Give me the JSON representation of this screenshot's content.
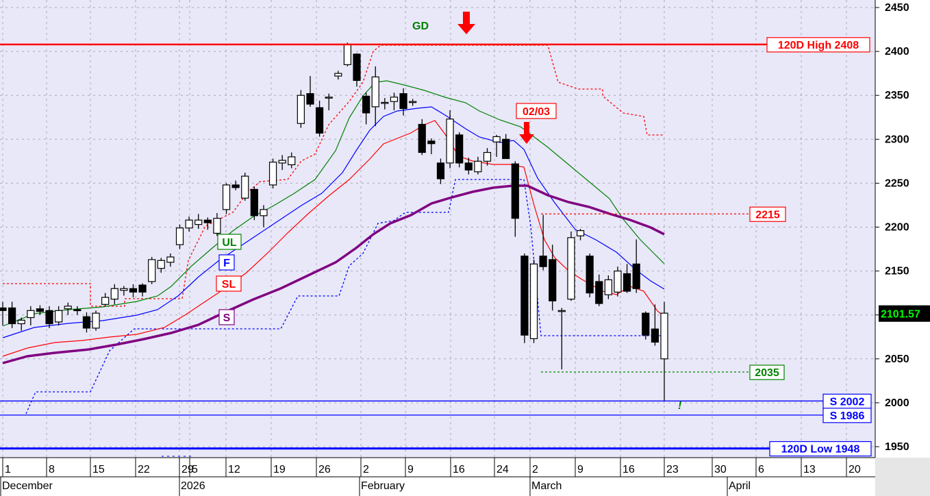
{
  "chart_data": {
    "type": "candlestick",
    "y_axis": {
      "min": 1940,
      "max": 2460,
      "ticks": [
        2450,
        2400,
        2350,
        2300,
        2250,
        2200,
        2150,
        2100,
        2050,
        2000,
        1950
      ],
      "position": "right"
    },
    "x_axis": {
      "day_ticks": [
        "1",
        "8",
        "15",
        "22",
        "29",
        "5",
        "12",
        "19",
        "26",
        "2",
        "9",
        "16",
        "24",
        "2",
        "9",
        "16",
        "23",
        "30",
        "6",
        "13",
        "20"
      ],
      "months": [
        "December",
        "2026",
        "February",
        "March",
        "April"
      ]
    },
    "grid": true,
    "last_price": "2101.57",
    "candles": [
      [
        2108,
        2105,
        2088,
        2115
      ],
      [
        2108,
        2090,
        2085,
        2115
      ],
      [
        2090,
        2094,
        2082,
        2097
      ],
      [
        2097,
        2105,
        2088,
        2110
      ],
      [
        2107,
        2104,
        2100,
        2111
      ],
      [
        2105,
        2090,
        2085,
        2110
      ],
      [
        2092,
        2105,
        2088,
        2110
      ],
      [
        2107,
        2110,
        2100,
        2114
      ],
      [
        2106,
        2105,
        2100,
        2110
      ],
      [
        2098,
        2085,
        2080,
        2103
      ],
      [
        2085,
        2102,
        2082,
        2105
      ],
      [
        2112,
        2120,
        2110,
        2125
      ],
      [
        2118,
        2130,
        2112,
        2135
      ],
      [
        2128,
        2130,
        2122,
        2133
      ],
      [
        2130,
        2126,
        2120,
        2135
      ],
      [
        2134,
        2126,
        2121,
        2136
      ],
      [
        2138,
        2163,
        2135,
        2166
      ],
      [
        2153,
        2162,
        2148,
        2165
      ],
      [
        2160,
        2166,
        2155,
        2170
      ],
      [
        2180,
        2199,
        2175,
        2203
      ],
      [
        2199,
        2208,
        2195,
        2212
      ],
      [
        2203,
        2208,
        2198,
        2215
      ],
      [
        2208,
        2205,
        2197,
        2211
      ],
      [
        2193,
        2210,
        2190,
        2216
      ],
      [
        2220,
        2248,
        2215,
        2250
      ],
      [
        2248,
        2245,
        2242,
        2253
      ],
      [
        2233,
        2258,
        2230,
        2262
      ],
      [
        2243,
        2213,
        2208,
        2246
      ],
      [
        2213,
        2220,
        2200,
        2225
      ],
      [
        2248,
        2274,
        2244,
        2278
      ],
      [
        2273,
        2276,
        2265,
        2282
      ],
      [
        2271,
        2280,
        2267,
        2285
      ],
      [
        2318,
        2350,
        2313,
        2356
      ],
      [
        2352,
        2340,
        2337,
        2372
      ],
      [
        2336,
        2307,
        2303,
        2344
      ],
      [
        2348,
        2348,
        2333,
        2352
      ],
      [
        2372,
        2375,
        2368,
        2378
      ],
      [
        2385,
        2408,
        2383,
        2410
      ],
      [
        2397,
        2367,
        2360,
        2398
      ],
      [
        2349,
        2330,
        2317,
        2353
      ],
      [
        2337,
        2371,
        2315,
        2383
      ],
      [
        2342,
        2342,
        2334,
        2347
      ],
      [
        2343,
        2348,
        2333,
        2353
      ],
      [
        2352,
        2335,
        2327,
        2358
      ],
      [
        2343,
        2343,
        2338,
        2346
      ],
      [
        2317,
        2285,
        2282,
        2323
      ],
      [
        2298,
        2295,
        2283,
        2301
      ],
      [
        2273,
        2255,
        2249,
        2278
      ],
      [
        2273,
        2323,
        2267,
        2333
      ],
      [
        2305,
        2273,
        2268,
        2308
      ],
      [
        2273,
        2265,
        2260,
        2279
      ],
      [
        2263,
        2275,
        2260,
        2280
      ],
      [
        2275,
        2285,
        2270,
        2290
      ],
      [
        2297,
        2303,
        2280,
        2305
      ],
      [
        2300,
        2278,
        2278,
        2306
      ],
      [
        2272,
        2210,
        2189,
        2275
      ],
      [
        2167,
        2077,
        2068,
        2170
      ],
      [
        2073,
        2158,
        2068,
        2163
      ],
      [
        2167,
        2155,
        2151,
        2214
      ],
      [
        2163,
        2116,
        2105,
        2180
      ],
      [
        2105,
        2105,
        2038,
        2108
      ],
      [
        2118,
        2188,
        2116,
        2195
      ],
      [
        2190,
        2196,
        2185,
        2198
      ],
      [
        2167,
        2125,
        2120,
        2170
      ],
      [
        2138,
        2113,
        2110,
        2146
      ],
      [
        2123,
        2140,
        2118,
        2145
      ],
      [
        2126,
        2150,
        2121,
        2155
      ],
      [
        2147,
        2127,
        2125,
        2158
      ],
      [
        2158,
        2130,
        2125,
        2186
      ],
      [
        2102,
        2077,
        2072,
        2104
      ],
      [
        2084,
        2069,
        2065,
        2112
      ],
      [
        2050,
        2102,
        2002,
        2115
      ]
    ],
    "overlays": [
      {
        "name": "UL",
        "color": "#008000"
      },
      {
        "name": "F",
        "color": "#0000ff"
      },
      {
        "name": "SL",
        "color": "#ff0000"
      },
      {
        "name": "S",
        "color": "#800080"
      }
    ],
    "horizontal_levels": [
      {
        "label": "120D High 2408",
        "value": 2408,
        "color": "#ff0000"
      },
      {
        "label": "2215",
        "value": 2215,
        "color": "#ff0000"
      },
      {
        "label": "2035",
        "value": 2035,
        "color": "#008000"
      },
      {
        "label": "S 2002",
        "value": 2002,
        "color": "#0000ff"
      },
      {
        "label": "S 1986",
        "value": 1986,
        "color": "#0000ff"
      },
      {
        "label": "120D Low 1948",
        "value": 1948,
        "color": "#0000ff"
      }
    ],
    "annotations": [
      {
        "label": "GD",
        "color": "#008000"
      },
      {
        "label": "02/03",
        "color": "#ff0000"
      },
      {
        "label": "!",
        "color": "#008000"
      }
    ]
  }
}
